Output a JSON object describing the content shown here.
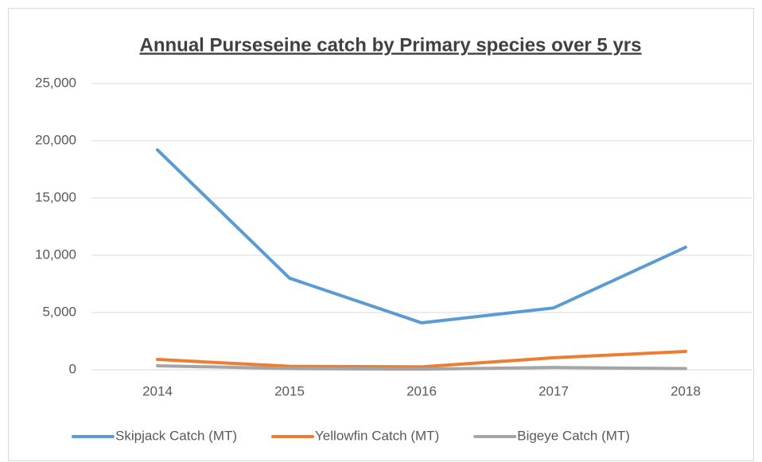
{
  "chart_data": {
    "type": "line",
    "title": "Annual  Purseseine catch by Primary species over 5 yrs",
    "categories": [
      "2014",
      "2015",
      "2016",
      "2017",
      "2018"
    ],
    "series": [
      {
        "name": "Skipjack Catch (MT)",
        "color": "#5b9bd5",
        "values": [
          19200,
          8000,
          4100,
          5400,
          10700
        ]
      },
      {
        "name": "Yellowfin Catch (MT)",
        "color": "#ed7d31",
        "values": [
          900,
          300,
          250,
          1050,
          1600
        ]
      },
      {
        "name": "Bigeye Catch (MT)",
        "color": "#a5a5a5",
        "values": [
          350,
          100,
          50,
          200,
          100
        ]
      }
    ],
    "ylim": [
      0,
      25000
    ],
    "yticks": [
      0,
      {
        "value": 5000,
        "label": "5,000"
      },
      {
        "value": 10000,
        "label": "10,000"
      },
      {
        "value": 15000,
        "label": "15,000"
      },
      {
        "value": 20000,
        "label": "20,000"
      },
      {
        "value": 25000,
        "label": "25,000"
      }
    ],
    "grid": true,
    "legend": "bottom"
  }
}
